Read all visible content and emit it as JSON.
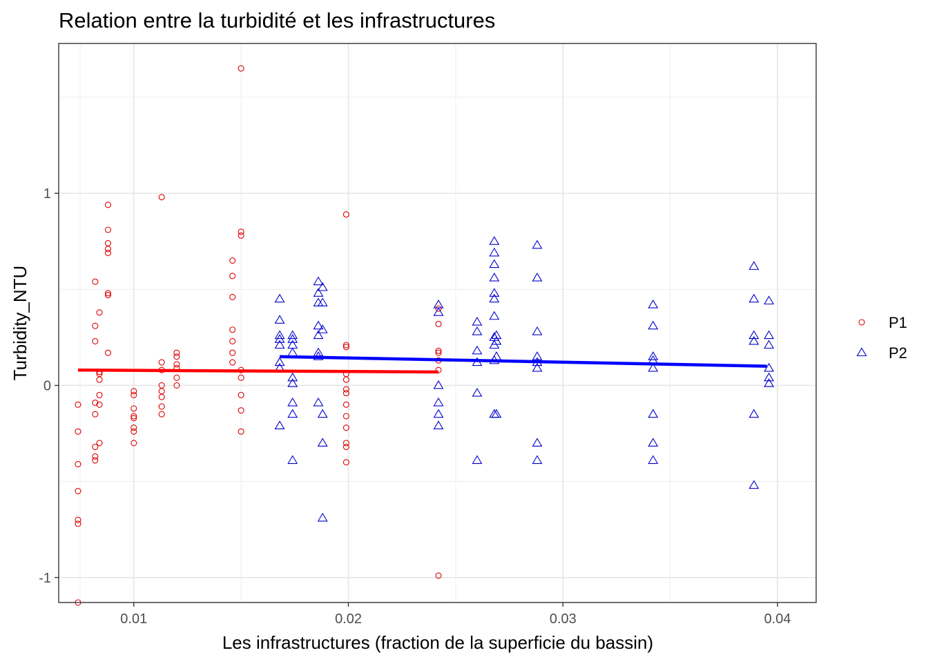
{
  "chart_data": {
    "type": "scatter",
    "title": "Relation entre la turbidité et les infrastructures",
    "xlabel": "Les infrastructures (fraction de la superficie du bassin)",
    "ylabel": "Turbidity_NTU",
    "xlim": [
      0.0065,
      0.0418
    ],
    "ylim": [
      -1.13,
      1.78
    ],
    "x_ticks": [
      0.01,
      0.02,
      0.03,
      0.04
    ],
    "x_tick_labels": [
      "0.01",
      "0.02",
      "0.03",
      "0.04"
    ],
    "y_ticks": [
      -1,
      0,
      1
    ],
    "y_tick_labels": [
      "-1",
      "0",
      "1"
    ],
    "grid": true,
    "legend_position": "right",
    "series": [
      {
        "name": "P1",
        "marker": "circle",
        "color": "#dd0000",
        "trend_color": "#ff0000",
        "trend": {
          "x": [
            0.0074,
            0.0242
          ],
          "y": [
            0.08,
            0.07
          ]
        },
        "points": [
          [
            0.0074,
            -0.1
          ],
          [
            0.0074,
            -0.24
          ],
          [
            0.0074,
            -0.41
          ],
          [
            0.0074,
            -0.55
          ],
          [
            0.0074,
            -0.7
          ],
          [
            0.0074,
            -0.72
          ],
          [
            0.0074,
            -1.13
          ],
          [
            0.0082,
            0.54
          ],
          [
            0.0082,
            0.31
          ],
          [
            0.0082,
            0.23
          ],
          [
            0.0082,
            -0.09
          ],
          [
            0.0082,
            -0.15
          ],
          [
            0.0082,
            -0.32
          ],
          [
            0.0082,
            -0.37
          ],
          [
            0.0082,
            -0.39
          ],
          [
            0.0084,
            0.38
          ],
          [
            0.0084,
            0.07
          ],
          [
            0.0084,
            0.06
          ],
          [
            0.0084,
            0.03
          ],
          [
            0.0084,
            -0.05
          ],
          [
            0.0084,
            -0.1
          ],
          [
            0.0084,
            -0.3
          ],
          [
            0.0088,
            0.94
          ],
          [
            0.0088,
            0.81
          ],
          [
            0.0088,
            0.74
          ],
          [
            0.0088,
            0.71
          ],
          [
            0.0088,
            0.69
          ],
          [
            0.0088,
            0.48
          ],
          [
            0.0088,
            0.47
          ],
          [
            0.0088,
            0.17
          ],
          [
            0.01,
            -0.03
          ],
          [
            0.01,
            -0.05
          ],
          [
            0.01,
            -0.12
          ],
          [
            0.01,
            -0.16
          ],
          [
            0.01,
            -0.17
          ],
          [
            0.01,
            -0.22
          ],
          [
            0.01,
            -0.24
          ],
          [
            0.01,
            -0.3
          ],
          [
            0.0113,
            0.98
          ],
          [
            0.0113,
            0.12
          ],
          [
            0.0113,
            0.08
          ],
          [
            0.0113,
            0.0
          ],
          [
            0.0113,
            -0.03
          ],
          [
            0.0113,
            -0.06
          ],
          [
            0.0113,
            -0.11
          ],
          [
            0.0113,
            -0.15
          ],
          [
            0.012,
            0.17
          ],
          [
            0.012,
            0.15
          ],
          [
            0.012,
            0.11
          ],
          [
            0.012,
            0.09
          ],
          [
            0.012,
            0.04
          ],
          [
            0.012,
            0.0
          ],
          [
            0.0146,
            0.65
          ],
          [
            0.0146,
            0.57
          ],
          [
            0.0146,
            0.46
          ],
          [
            0.0146,
            0.29
          ],
          [
            0.0146,
            0.23
          ],
          [
            0.0146,
            0.17
          ],
          [
            0.0146,
            0.12
          ],
          [
            0.015,
            1.65
          ],
          [
            0.015,
            0.8
          ],
          [
            0.015,
            0.78
          ],
          [
            0.015,
            0.08
          ],
          [
            0.015,
            0.04
          ],
          [
            0.015,
            -0.05
          ],
          [
            0.015,
            -0.13
          ],
          [
            0.015,
            -0.24
          ],
          [
            0.0199,
            0.89
          ],
          [
            0.0199,
            0.21
          ],
          [
            0.0199,
            0.2
          ],
          [
            0.0199,
            0.06
          ],
          [
            0.0199,
            0.03
          ],
          [
            0.0199,
            -0.02
          ],
          [
            0.0199,
            -0.04
          ],
          [
            0.0199,
            -0.1
          ],
          [
            0.0199,
            -0.16
          ],
          [
            0.0199,
            -0.22
          ],
          [
            0.0199,
            -0.3
          ],
          [
            0.0199,
            -0.32
          ],
          [
            0.0199,
            -0.4
          ],
          [
            0.0242,
            0.4
          ],
          [
            0.0242,
            0.32
          ],
          [
            0.0242,
            0.18
          ],
          [
            0.0242,
            0.17
          ],
          [
            0.0242,
            0.13
          ],
          [
            0.0242,
            0.08
          ],
          [
            0.0242,
            -0.99
          ]
        ]
      },
      {
        "name": "P2",
        "marker": "triangle",
        "color": "#0000cc",
        "trend_color": "#0000ff",
        "trend": {
          "x": [
            0.0168,
            0.0395
          ],
          "y": [
            0.15,
            0.1
          ]
        },
        "points": [
          [
            0.0168,
            0.45
          ],
          [
            0.0168,
            0.34
          ],
          [
            0.0168,
            0.26
          ],
          [
            0.0168,
            0.24
          ],
          [
            0.0168,
            0.21
          ],
          [
            0.0168,
            0.12
          ],
          [
            0.0168,
            0.09
          ],
          [
            0.0168,
            -0.21
          ],
          [
            0.0174,
            0.26
          ],
          [
            0.0174,
            0.24
          ],
          [
            0.0174,
            0.21
          ],
          [
            0.0174,
            0.17
          ],
          [
            0.0174,
            0.04
          ],
          [
            0.0174,
            0.01
          ],
          [
            0.0174,
            -0.09
          ],
          [
            0.0174,
            -0.15
          ],
          [
            0.0174,
            -0.39
          ],
          [
            0.0186,
            0.54
          ],
          [
            0.0186,
            0.48
          ],
          [
            0.0186,
            0.43
          ],
          [
            0.0186,
            0.31
          ],
          [
            0.0186,
            0.26
          ],
          [
            0.0186,
            0.17
          ],
          [
            0.0186,
            0.15
          ],
          [
            0.0186,
            -0.09
          ],
          [
            0.0188,
            0.51
          ],
          [
            0.0188,
            0.43
          ],
          [
            0.0188,
            0.29
          ],
          [
            0.0188,
            -0.15
          ],
          [
            0.0188,
            -0.3
          ],
          [
            0.0188,
            -0.69
          ],
          [
            0.0242,
            0.42
          ],
          [
            0.0242,
            0.38
          ],
          [
            0.0242,
            0.0
          ],
          [
            0.0242,
            -0.09
          ],
          [
            0.0242,
            -0.15
          ],
          [
            0.0242,
            -0.21
          ],
          [
            0.026,
            0.33
          ],
          [
            0.026,
            0.28
          ],
          [
            0.026,
            0.18
          ],
          [
            0.026,
            0.12
          ],
          [
            0.026,
            -0.04
          ],
          [
            0.026,
            -0.39
          ],
          [
            0.0268,
            0.75
          ],
          [
            0.0268,
            0.69
          ],
          [
            0.0268,
            0.63
          ],
          [
            0.0268,
            0.56
          ],
          [
            0.0268,
            0.48
          ],
          [
            0.0268,
            0.45
          ],
          [
            0.0268,
            0.36
          ],
          [
            0.0268,
            0.25
          ],
          [
            0.0268,
            0.21
          ],
          [
            0.0268,
            0.13
          ],
          [
            0.0268,
            -0.15
          ],
          [
            0.0269,
            0.26
          ],
          [
            0.0269,
            0.23
          ],
          [
            0.0269,
            0.15
          ],
          [
            0.0269,
            -0.15
          ],
          [
            0.0288,
            0.73
          ],
          [
            0.0288,
            0.56
          ],
          [
            0.0288,
            0.28
          ],
          [
            0.0288,
            0.15
          ],
          [
            0.0288,
            0.12
          ],
          [
            0.0288,
            0.09
          ],
          [
            0.0288,
            -0.3
          ],
          [
            0.0288,
            -0.39
          ],
          [
            0.0342,
            0.42
          ],
          [
            0.0342,
            0.31
          ],
          [
            0.0342,
            0.15
          ],
          [
            0.0342,
            0.13
          ],
          [
            0.0342,
            0.09
          ],
          [
            0.0342,
            -0.15
          ],
          [
            0.0342,
            -0.3
          ],
          [
            0.0342,
            -0.39
          ],
          [
            0.0389,
            0.62
          ],
          [
            0.0389,
            0.45
          ],
          [
            0.0389,
            0.26
          ],
          [
            0.0389,
            0.23
          ],
          [
            0.0389,
            -0.15
          ],
          [
            0.0389,
            -0.52
          ],
          [
            0.0396,
            0.44
          ],
          [
            0.0396,
            0.26
          ],
          [
            0.0396,
            0.21
          ],
          [
            0.0396,
            0.09
          ],
          [
            0.0396,
            0.04
          ],
          [
            0.0396,
            0.01
          ]
        ]
      }
    ]
  }
}
